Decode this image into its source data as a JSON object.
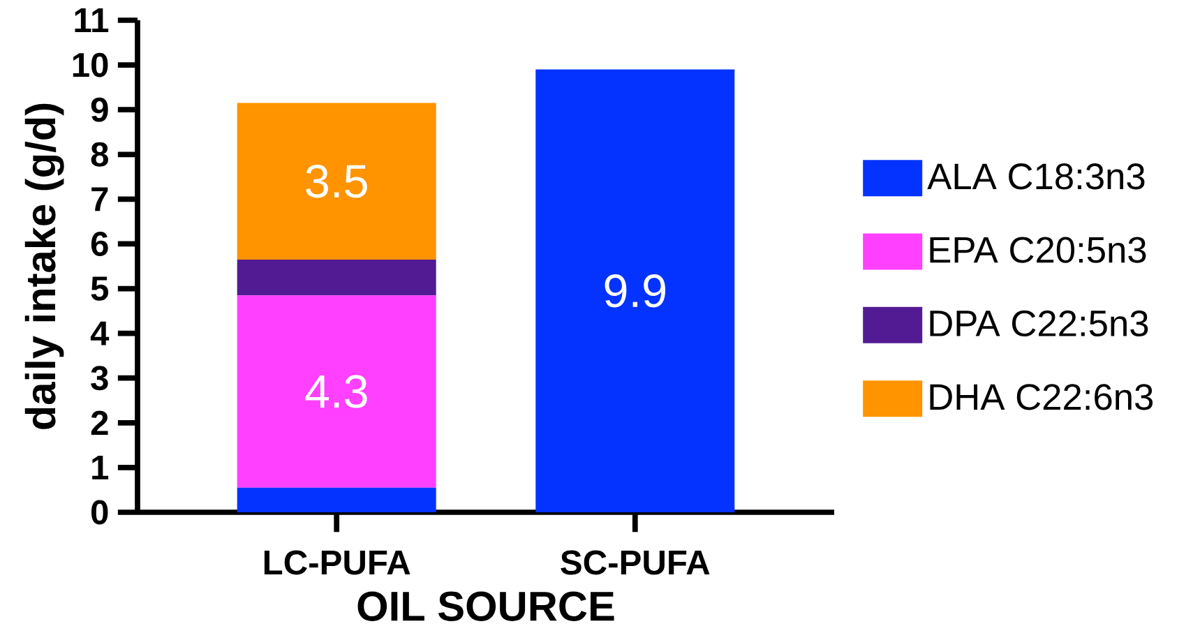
{
  "chart_data": {
    "type": "bar",
    "stacked": true,
    "categories": [
      "LC-PUFA",
      "SC-PUFA"
    ],
    "xlabel": "OIL SOURCE",
    "ylabel": "daily intake (g/d)",
    "ylim": [
      0,
      11
    ],
    "yticks": [
      0,
      1,
      2,
      3,
      4,
      5,
      6,
      7,
      8,
      9,
      10,
      11
    ],
    "grid": false,
    "legend": "right",
    "series": [
      {
        "name": "ALA C18:3n3",
        "color": "#0433ff",
        "values": [
          0.55,
          9.9
        ],
        "value_labels": [
          null,
          "9.9"
        ]
      },
      {
        "name": "EPA C20:5n3",
        "color": "#ff40ff",
        "values": [
          4.3,
          0
        ],
        "value_labels": [
          "4.3",
          null
        ]
      },
      {
        "name": "DPA  C22:5n3",
        "color": "#531b93",
        "values": [
          0.8,
          0
        ],
        "value_labels": [
          null,
          null
        ]
      },
      {
        "name": "DHA C22:6n3",
        "color": "#ff9300",
        "values": [
          3.5,
          0
        ],
        "value_labels": [
          "3.5",
          null
        ]
      }
    ]
  }
}
